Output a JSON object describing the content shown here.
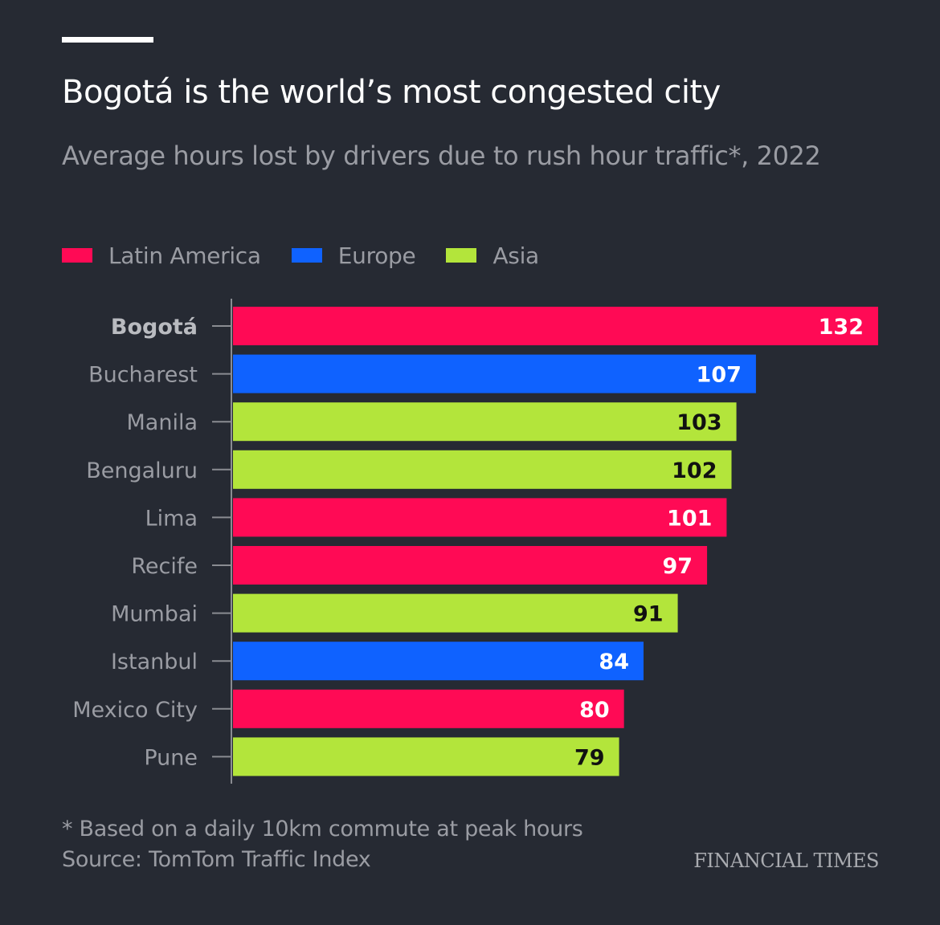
{
  "colors": {
    "background": "#262a33",
    "Latin America": "#ff0a55",
    "Europe": "#0f62ff",
    "Asia": "#b3e53b",
    "label_on_dark": "#ffffff",
    "label_on_light": "#111111"
  },
  "chart_data": {
    "type": "bar",
    "orientation": "horizontal",
    "title": "Bogotá is the world’s most congested city",
    "subtitle": "Average hours lost by drivers due to rush hour traffic*, 2022",
    "legend": [
      {
        "name": "Latin America"
      },
      {
        "name": "Europe"
      },
      {
        "name": "Asia"
      }
    ],
    "legend_position": "top-left",
    "categories": [
      "Bogotá",
      "Bucharest",
      "Manila",
      "Bengaluru",
      "Lima",
      "Recife",
      "Mumbai",
      "Istanbul",
      "Mexico City",
      "Pune"
    ],
    "values": [
      132,
      107,
      103,
      102,
      101,
      97,
      91,
      84,
      80,
      79
    ],
    "regions": [
      "Latin America",
      "Europe",
      "Asia",
      "Asia",
      "Latin America",
      "Latin America",
      "Asia",
      "Europe",
      "Latin America",
      "Asia"
    ],
    "value_labels": [
      "132",
      "107",
      "103",
      "102",
      "101",
      "97",
      "91",
      "84",
      "80",
      "79"
    ],
    "highlighted_category": "Bogotá",
    "xlim": [
      0,
      132
    ],
    "xlabel": "",
    "ylabel": "",
    "grid": false
  },
  "footer": {
    "note": "* Based on a daily 10km commute at peak hours",
    "source": "Source: TomTom Traffic Index",
    "brand": "FINANCIAL TIMES"
  }
}
